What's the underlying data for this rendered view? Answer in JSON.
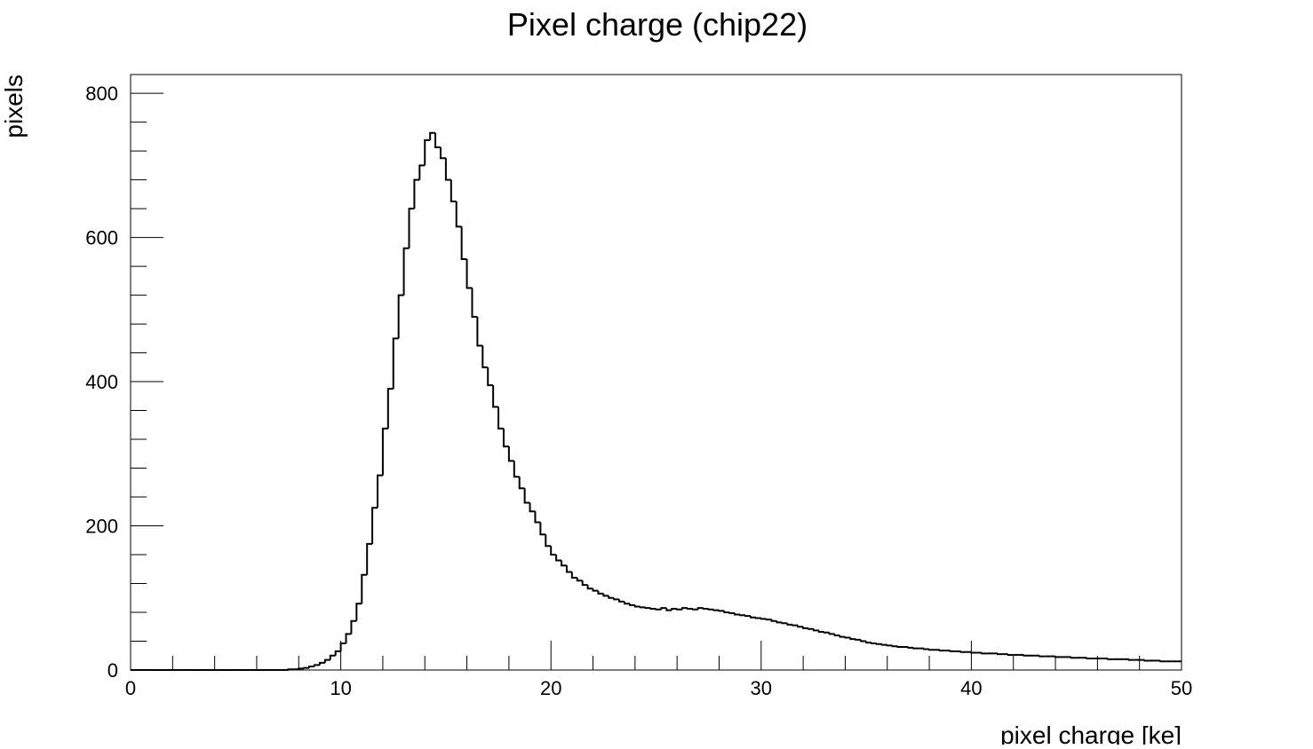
{
  "chart_data": {
    "type": "histogram",
    "title": "Pixel charge (chip22)",
    "x_label": "pixel charge [ke]",
    "y_label": "pixels",
    "color": "#000000",
    "bins": [
      0,
      0.25,
      0.5,
      0.75,
      1,
      1.25,
      1.5,
      1.75,
      2,
      2.25,
      2.5,
      2.75,
      3,
      3.25,
      3.5,
      3.75,
      4,
      4.25,
      4.5,
      4.75,
      5,
      5.25,
      5.5,
      5.75,
      6,
      6.25,
      6.5,
      6.75,
      7,
      7.25,
      7.5,
      7.75,
      8,
      8.25,
      8.5,
      8.75,
      9,
      9.25,
      9.5,
      9.75,
      10,
      10.25,
      10.5,
      10.75,
      11,
      11.25,
      11.5,
      11.75,
      12,
      12.25,
      12.5,
      12.75,
      13,
      13.25,
      13.5,
      13.75,
      14,
      14.25,
      14.5,
      14.75,
      15,
      15.25,
      15.5,
      15.75,
      16,
      16.25,
      16.5,
      16.75,
      17,
      17.25,
      17.5,
      17.75,
      18,
      18.25,
      18.5,
      18.75,
      19,
      19.25,
      19.5,
      19.75,
      20,
      20.25,
      20.5,
      20.75,
      21,
      21.25,
      21.5,
      21.75,
      22,
      22.25,
      22.5,
      22.75,
      23,
      23.25,
      23.5,
      23.75,
      24,
      24.25,
      24.5,
      24.75,
      25,
      25.25,
      25.5,
      25.75,
      26,
      26.25,
      26.5,
      26.75,
      27,
      27.25,
      27.5,
      27.75,
      28,
      28.25,
      28.5,
      28.75,
      29,
      29.25,
      29.5,
      29.75,
      30,
      30.25,
      30.5,
      30.75,
      31,
      31.25,
      31.5,
      31.75,
      32,
      32.25,
      32.5,
      32.75,
      33,
      33.25,
      33.5,
      33.75,
      34,
      34.25,
      34.5,
      34.75,
      35,
      35.25,
      35.5,
      35.75,
      36,
      36.25,
      36.5,
      36.75,
      37,
      37.25,
      37.5,
      37.75,
      38,
      38.25,
      38.5,
      38.75,
      39,
      39.25,
      39.5,
      39.75,
      40,
      40.25,
      40.5,
      40.75,
      41,
      41.25,
      41.5,
      41.75,
      42,
      42.25,
      42.5,
      42.75,
      43,
      43.25,
      43.5,
      43.75,
      44,
      44.25,
      44.5,
      44.75,
      45,
      45.25,
      45.5,
      45.75,
      46,
      46.25,
      46.5,
      46.75,
      47,
      47.25,
      47.5,
      47.75,
      48,
      48.25,
      48.5,
      48.75,
      49,
      49.25,
      49.5,
      49.75,
      50
    ],
    "values": [
      0,
      0,
      0,
      0,
      0,
      0,
      0,
      0,
      0,
      0,
      0,
      0,
      0,
      0,
      0,
      0,
      0,
      0,
      0,
      0,
      0,
      0,
      0,
      0,
      0,
      0,
      0,
      0,
      0,
      0,
      1,
      1,
      2,
      3,
      5,
      7,
      10,
      14,
      20,
      26,
      37,
      50,
      68,
      92,
      132,
      175,
      225,
      270,
      335,
      390,
      460,
      520,
      585,
      640,
      680,
      700,
      735,
      745,
      725,
      710,
      680,
      650,
      615,
      570,
      530,
      490,
      450,
      420,
      395,
      365,
      335,
      310,
      290,
      268,
      252,
      232,
      220,
      205,
      188,
      172,
      160,
      152,
      145,
      136,
      128,
      124,
      118,
      113,
      110,
      106,
      103,
      100,
      98,
      95,
      92,
      90,
      88,
      87,
      86,
      85,
      84,
      86,
      83,
      85,
      84,
      86,
      85,
      84,
      86,
      85,
      84,
      83,
      82,
      80,
      79,
      77,
      76,
      75,
      73,
      72,
      71,
      70,
      68,
      66,
      65,
      63,
      62,
      60,
      58,
      57,
      55,
      53,
      52,
      50,
      48,
      46,
      45,
      43,
      42,
      40,
      38,
      37,
      36,
      35,
      34,
      33,
      32,
      32,
      31,
      30,
      30,
      29,
      28,
      28,
      27,
      27,
      26,
      26,
      25,
      25,
      24,
      24,
      23,
      23,
      23,
      22,
      22,
      21,
      21,
      21,
      20,
      20,
      20,
      19,
      19,
      19,
      18,
      18,
      18,
      17,
      17,
      17,
      16,
      16,
      16,
      16,
      15,
      15,
      15,
      15,
      14,
      14,
      14,
      13,
      13,
      13,
      12,
      12,
      12,
      12
    ],
    "xlim": [
      0,
      50
    ],
    "xticks": [
      0,
      10,
      20,
      30,
      40,
      50
    ],
    "ylim": [
      0,
      826
    ],
    "yticks": [
      0,
      200,
      400,
      600,
      800
    ]
  }
}
